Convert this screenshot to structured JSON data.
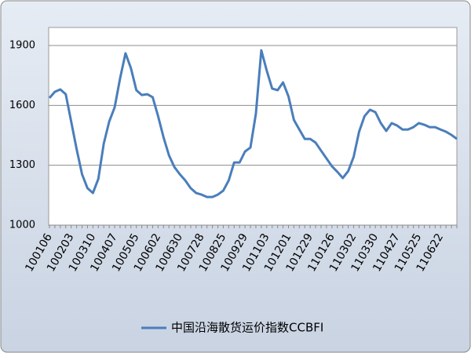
{
  "chart_data": {
    "type": "line",
    "categories": [
      "100106",
      null,
      null,
      null,
      "100203",
      null,
      null,
      null,
      "100310",
      null,
      null,
      null,
      "100407",
      null,
      null,
      null,
      "100505",
      null,
      null,
      null,
      "100602",
      null,
      null,
      null,
      "100630",
      null,
      null,
      null,
      "100728",
      null,
      null,
      null,
      "100825",
      null,
      null,
      null,
      "100929",
      null,
      null,
      null,
      "101103",
      null,
      null,
      null,
      "101201",
      null,
      null,
      null,
      "101229",
      null,
      null,
      null,
      "110126",
      null,
      null,
      null,
      "110302",
      null,
      null,
      null,
      "110330",
      null,
      null,
      null,
      "110427",
      null,
      null,
      null,
      "110525",
      null,
      null,
      null,
      "110622",
      null,
      null,
      null
    ],
    "series": [
      {
        "name": "中国沿海散货运价指数CCBFI",
        "color": "#4a7ebb",
        "values": [
          1637,
          1668,
          1680,
          1656,
          1519,
          1381,
          1255,
          1185,
          1161,
          1232,
          1409,
          1519,
          1590,
          1735,
          1861,
          1786,
          1676,
          1652,
          1656,
          1641,
          1546,
          1440,
          1350,
          1291,
          1255,
          1224,
          1185,
          1161,
          1153,
          1141,
          1141,
          1153,
          1173,
          1224,
          1314,
          1314,
          1369,
          1389,
          1558,
          1876,
          1774,
          1684,
          1676,
          1715,
          1645,
          1527,
          1479,
          1432,
          1432,
          1413,
          1373,
          1334,
          1295,
          1267,
          1236,
          1271,
          1342,
          1468,
          1546,
          1578,
          1566,
          1511,
          1472,
          1511,
          1499,
          1479,
          1479,
          1491,
          1511,
          1503,
          1491,
          1491,
          1479,
          1468,
          1452,
          1432
        ]
      }
    ],
    "ylim": [
      1000,
      1900
    ],
    "yticks": [
      1000,
      1300,
      1600,
      1900
    ],
    "grid": true,
    "legend": "bottom"
  }
}
